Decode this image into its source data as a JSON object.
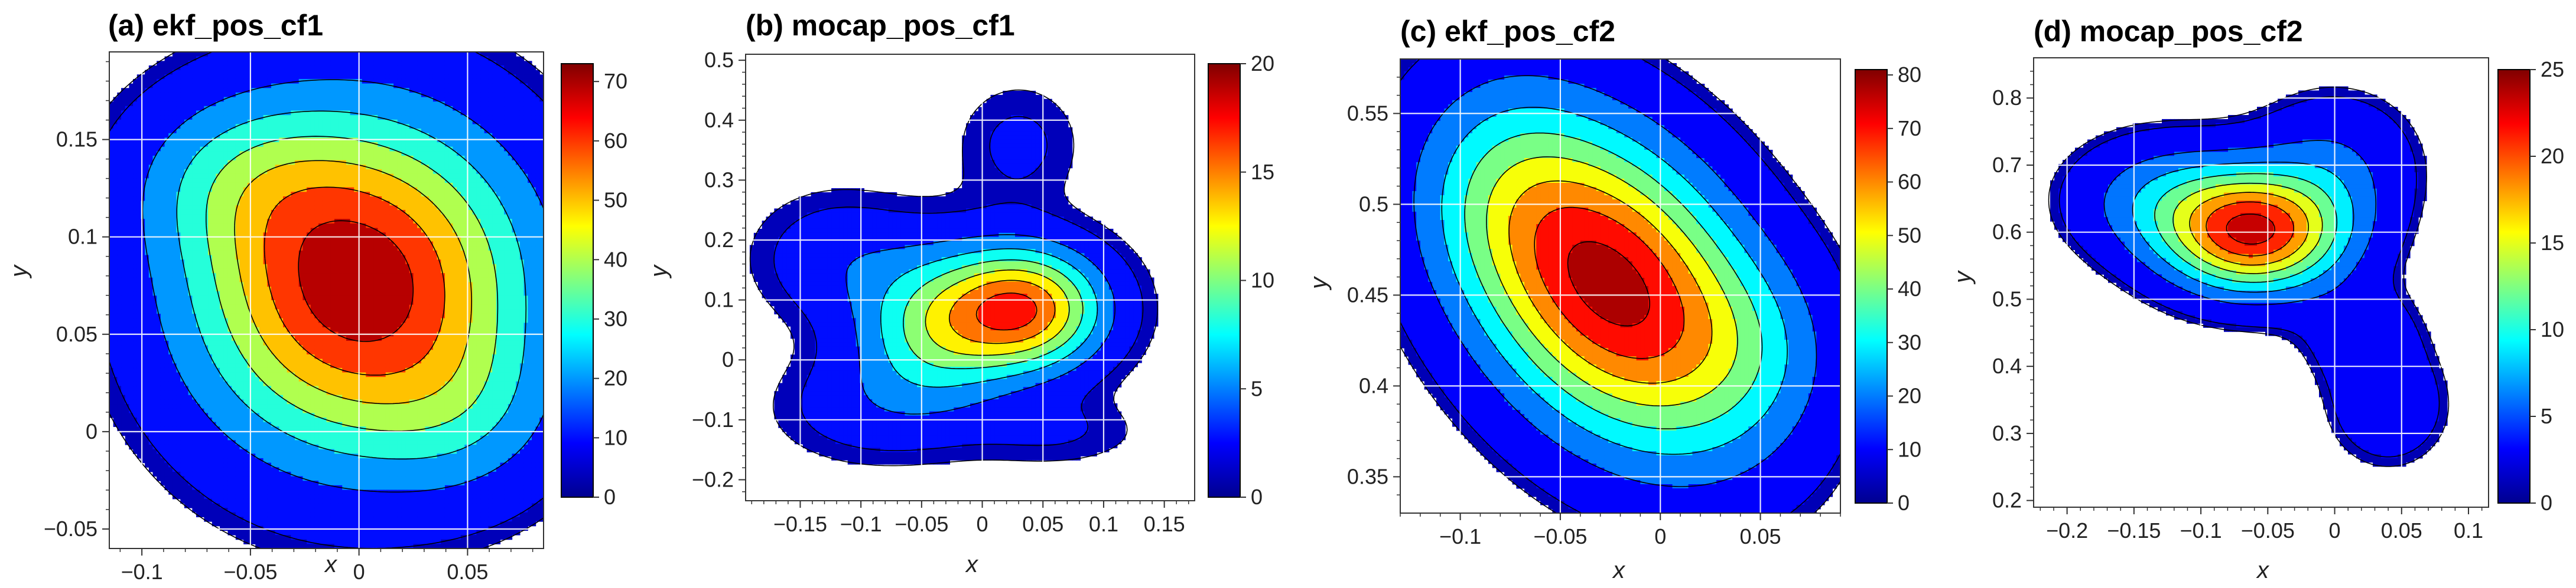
{
  "figure": {
    "layout": "1x4 row of contour density plots with colorbars"
  },
  "chart_data": [
    {
      "type": "contour",
      "title": "(a) ekf_pos_cf1",
      "xlabel": "x",
      "ylabel": "y",
      "xlim": [
        -0.115,
        0.085
      ],
      "ylim": [
        -0.06,
        0.195
      ],
      "xticks": [
        -0.1,
        -0.05,
        0,
        0.05
      ],
      "xtick_labels": [
        "−0.1",
        "−0.05",
        "0",
        "0.05"
      ],
      "yticks": [
        -0.05,
        0,
        0.05,
        0.1,
        0.15
      ],
      "ytick_labels": [
        "−0.05",
        "0",
        "0.05",
        "0.1",
        "0.15"
      ],
      "colorbar": {
        "min": 0,
        "max": 73,
        "ticks": [
          0,
          10,
          20,
          30,
          40,
          50,
          60,
          70
        ],
        "tick_labels": [
          "0",
          "10",
          "20",
          "30",
          "40",
          "50",
          "60",
          "70"
        ]
      },
      "levels": [
        5,
        15,
        25,
        35,
        45,
        55,
        65
      ],
      "peak": 73,
      "components": [
        {
          "cx": 0.0,
          "cy": 0.075,
          "sx": 0.052,
          "sy": 0.058,
          "rho": 0.0,
          "w": 0.85
        },
        {
          "cx": -0.055,
          "cy": 0.13,
          "sx": 0.035,
          "sy": 0.03,
          "rho": 0.0,
          "w": 0.18
        },
        {
          "cx": 0.05,
          "cy": 0.01,
          "sx": 0.03,
          "sy": 0.03,
          "rho": 0.0,
          "w": 0.12
        }
      ],
      "cutoff": 0.045
    },
    {
      "type": "contour",
      "title": "(b) mocap_pos_cf1",
      "xlabel": "x",
      "ylabel": "y",
      "xlim": [
        -0.195,
        0.175
      ],
      "ylim": [
        -0.235,
        0.51
      ],
      "xticks": [
        -0.15,
        -0.1,
        -0.05,
        0,
        0.05,
        0.1,
        0.15
      ],
      "xtick_labels": [
        "−0.15",
        "−0.1",
        "−0.05",
        "0",
        "0.05",
        "0.1",
        "0.15"
      ],
      "yticks": [
        -0.2,
        -0.1,
        0,
        0.1,
        0.2,
        0.3,
        0.4,
        0.5
      ],
      "ytick_labels": [
        "−0.2",
        "−0.1",
        "0",
        "0.1",
        "0.2",
        "0.3",
        "0.4",
        "0.5"
      ],
      "colorbar": {
        "min": 0,
        "max": 20,
        "ticks": [
          0,
          5,
          10,
          15,
          20
        ],
        "tick_labels": [
          "0",
          "5",
          "10",
          "15",
          "20"
        ]
      },
      "levels": [
        1.5,
        4,
        6.5,
        9,
        11.5,
        14,
        16.5
      ],
      "peak": 18,
      "components": [
        {
          "cx": 0.035,
          "cy": 0.085,
          "sx": 0.045,
          "sy": 0.07,
          "rho": 0.0,
          "w": 1.0
        },
        {
          "cx": -0.04,
          "cy": 0.05,
          "sx": 0.045,
          "sy": 0.09,
          "rho": 0.0,
          "w": 0.55
        },
        {
          "cx": -0.12,
          "cy": 0.17,
          "sx": 0.045,
          "sy": 0.07,
          "rho": 0.0,
          "w": 0.18
        },
        {
          "cx": 0.03,
          "cy": 0.36,
          "sx": 0.035,
          "sy": 0.07,
          "rho": 0.0,
          "w": 0.12
        },
        {
          "cx": -0.1,
          "cy": -0.08,
          "sx": 0.05,
          "sy": 0.06,
          "rho": 0.0,
          "w": 0.14
        },
        {
          "cx": 0.06,
          "cy": -0.12,
          "sx": 0.05,
          "sy": 0.04,
          "rho": 0.0,
          "w": 0.1
        }
      ],
      "cutoff": 0.045
    },
    {
      "type": "contour",
      "title": "(c) ekf_pos_cf2",
      "xlabel": "x",
      "ylabel": "y",
      "xlim": [
        -0.13,
        0.09
      ],
      "ylim": [
        0.33,
        0.58
      ],
      "xticks": [
        -0.1,
        -0.05,
        0,
        0.05
      ],
      "xtick_labels": [
        "−0.1",
        "−0.05",
        "0",
        "0.05"
      ],
      "yticks": [
        0.35,
        0.4,
        0.45,
        0.5,
        0.55
      ],
      "ytick_labels": [
        "0.35",
        "0.4",
        "0.45",
        "0.5",
        "0.55"
      ],
      "colorbar": {
        "min": 0,
        "max": 81,
        "ticks": [
          0,
          10,
          20,
          30,
          40,
          50,
          60,
          70,
          80
        ],
        "tick_labels": [
          "0",
          "10",
          "20",
          "30",
          "40",
          "50",
          "60",
          "70",
          "80"
        ]
      },
      "levels": [
        5,
        15,
        25,
        35,
        45,
        55,
        65,
        75
      ],
      "peak": 80,
      "components": [
        {
          "cx": -0.025,
          "cy": 0.455,
          "sx": 0.05,
          "sy": 0.06,
          "rho": -0.35,
          "w": 0.92
        },
        {
          "cx": -0.08,
          "cy": 0.51,
          "sx": 0.03,
          "sy": 0.04,
          "rho": 0.0,
          "w": 0.12
        },
        {
          "cx": 0.045,
          "cy": 0.42,
          "sx": 0.03,
          "sy": 0.035,
          "rho": 0.0,
          "w": 0.12
        }
      ],
      "cutoff": 0.045
    },
    {
      "type": "contour",
      "title": "(d) mocap_pos_cf2",
      "xlabel": "x",
      "ylabel": "y",
      "xlim": [
        -0.225,
        0.115
      ],
      "ylim": [
        0.19,
        0.86
      ],
      "xticks": [
        -0.2,
        -0.15,
        -0.1,
        -0.05,
        0,
        0.05,
        0.1
      ],
      "xtick_labels": [
        "−0.2",
        "−0.15",
        "−0.1",
        "−0.05",
        "0",
        "0.05",
        "0.1"
      ],
      "yticks": [
        0.2,
        0.3,
        0.4,
        0.5,
        0.6,
        0.7,
        0.8
      ],
      "ytick_labels": [
        "0.2",
        "0.3",
        "0.4",
        "0.5",
        "0.6",
        "0.7",
        "0.8"
      ],
      "colorbar": {
        "min": 0,
        "max": 25,
        "ticks": [
          0,
          5,
          10,
          15,
          20,
          25
        ],
        "tick_labels": [
          "0",
          "5",
          "10",
          "15",
          "20",
          "25"
        ]
      },
      "levels": [
        1.5,
        4.5,
        7.5,
        10.5,
        13.5,
        16.5,
        19.5,
        22.5
      ],
      "peak": 24,
      "components": [
        {
          "cx": -0.06,
          "cy": 0.6,
          "sx": 0.045,
          "sy": 0.06,
          "rho": 0.0,
          "w": 0.95
        },
        {
          "cx": -0.13,
          "cy": 0.65,
          "sx": 0.045,
          "sy": 0.06,
          "rho": 0.0,
          "w": 0.25
        },
        {
          "cx": 0.0,
          "cy": 0.7,
          "sx": 0.04,
          "sy": 0.07,
          "rho": 0.0,
          "w": 0.18
        },
        {
          "cx": 0.04,
          "cy": 0.34,
          "sx": 0.03,
          "sy": 0.06,
          "rho": 0.0,
          "w": 0.14
        },
        {
          "cx": 0.02,
          "cy": 0.45,
          "sx": 0.03,
          "sy": 0.05,
          "rho": 0.0,
          "w": 0.12
        }
      ],
      "cutoff": 0.045
    }
  ]
}
